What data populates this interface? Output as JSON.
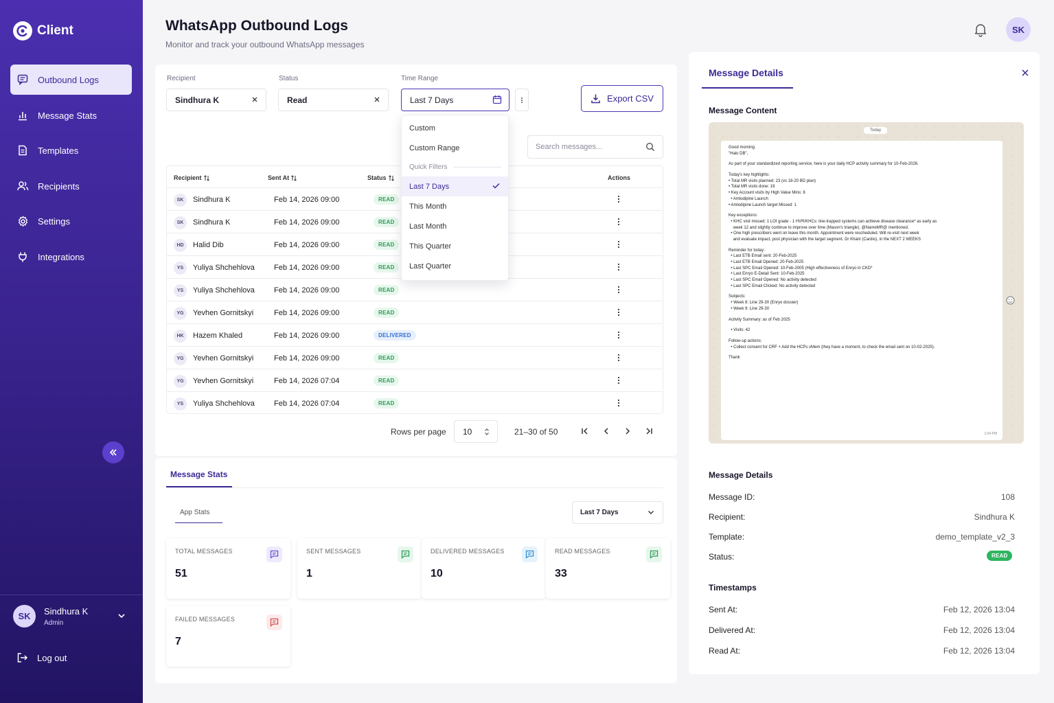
{
  "app": {
    "name": "Client"
  },
  "nav": {
    "items": [
      {
        "label": "Outbound Logs",
        "icon": "message-square-icon",
        "active": true
      },
      {
        "label": "Message Stats",
        "icon": "bar-chart-icon"
      },
      {
        "label": "Templates",
        "icon": "file-text-icon"
      },
      {
        "label": "Recipients",
        "icon": "users-icon"
      },
      {
        "label": "Settings",
        "icon": "gear-icon"
      },
      {
        "label": "Integrations",
        "icon": "plug-icon"
      }
    ]
  },
  "user": {
    "initials": "SK",
    "name": "Sindhura K",
    "role": "Admin",
    "logout": "Log out"
  },
  "header": {
    "title": "WhatsApp Outbound Logs",
    "subtitle": "Monitor and track your outbound WhatsApp messages",
    "avatar_initials": "SK"
  },
  "filters": {
    "recipient": {
      "label": "Recipient",
      "value": "Sindhura K"
    },
    "status": {
      "label": "Status",
      "value": "Read"
    },
    "time_range": {
      "label": "Time Range",
      "value": "Last 7 Days"
    },
    "export_label": "Export CSV",
    "search_placeholder": "Search messages..."
  },
  "time_dropdown": {
    "items": [
      "Custom",
      "Custom Range"
    ],
    "quick_header": "Quick Filters",
    "quick": [
      "Last 7 Days",
      "This Month",
      "Last Month",
      "This Quarter",
      "Last Quarter"
    ],
    "selected": "Last 7 Days"
  },
  "table": {
    "headers": {
      "recipient": "Recipient",
      "sent_at": "Sent At",
      "status": "Status",
      "actions": "Actions"
    },
    "rows": [
      {
        "initials": "SK",
        "name": "Sindhura K",
        "sent_at": "Feb 14, 2026 09:00",
        "status": "READ"
      },
      {
        "initials": "SK",
        "name": "Sindhura K",
        "sent_at": "Feb 14, 2026 09:00",
        "status": "READ"
      },
      {
        "initials": "HD",
        "name": "Halid Dib",
        "sent_at": "Feb 14, 2026 09:00",
        "status": "READ"
      },
      {
        "initials": "YS",
        "name": "Yuliya Shchehlova",
        "sent_at": "Feb 14, 2026 09:00",
        "status": "READ"
      },
      {
        "initials": "YS",
        "name": "Yuliya Shchehlova",
        "sent_at": "Feb 14, 2026 09:00",
        "status": "READ"
      },
      {
        "initials": "YG",
        "name": "Yevhen Gornitskyi",
        "sent_at": "Feb 14, 2026 09:00",
        "status": "READ"
      },
      {
        "initials": "HK",
        "name": "Hazem Khaled",
        "sent_at": "Feb 14, 2026 09:00",
        "status": "DELIVERED"
      },
      {
        "initials": "YG",
        "name": "Yevhen Gornitskyi",
        "sent_at": "Feb 14, 2026 09:00",
        "status": "READ"
      },
      {
        "initials": "YG",
        "name": "Yevhen Gornitskyi",
        "sent_at": "Feb 14, 2026 07:04",
        "status": "READ"
      },
      {
        "initials": "YS",
        "name": "Yuliya Shchehlova",
        "sent_at": "Feb 14, 2026 07:04",
        "status": "READ"
      }
    ]
  },
  "pagination": {
    "rows_per_page_label": "Rows per page",
    "rows_per_page": "10",
    "range": "21–30 of 50"
  },
  "stats": {
    "tab": "Message Stats",
    "subtab": "App Stats",
    "range": "Last 7 Days",
    "cards": [
      {
        "label": "TOTAL MESSAGES",
        "value": "51",
        "color": "#6a4fd8",
        "bg": "#eeeafc"
      },
      {
        "label": "SENT MESSAGES",
        "value": "1",
        "color": "#2c9a57",
        "bg": "#e6f7ec"
      },
      {
        "label": "DELIVERED MESSAGES",
        "value": "10",
        "color": "#2f8fd2",
        "bg": "#e6f2fb"
      },
      {
        "label": "READ MESSAGES",
        "value": "33",
        "color": "#2c9a57",
        "bg": "#e6f7ec"
      },
      {
        "label": "FAILED MESSAGES",
        "value": "7",
        "color": "#d94848",
        "bg": "#fdeaea"
      }
    ]
  },
  "detail": {
    "title": "Message Details",
    "content_heading": "Message Content",
    "today": "Today",
    "message_lines": [
      "Good morning",
      "\"Halo DB\",",
      "",
      "As part of your standardized reporting service, here is your daily HCP activity summary for 10-Feb-2026.",
      "",
      "Today's key highlights:",
      "• Total MR visits planned: 23 (vs 18-20 BD plan)",
      "• Total MR visits done: 19",
      "• Key Account visits by High Value Mins: 8",
      "  • Amlodipine Launch",
      "• Amlodipine Launch target Missed: 1",
      "",
      "Key exceptions:",
      "  • KHC visit missed: 1 LOI grade - 1 HVR/KHCs: line-trapped systems can achieve disease clearance* as early as",
      "    week 12 and slightly continue to improve over time (Mason's triangle). @NameMR@ mentioned.",
      "  • One high prescribers went on leave this month. Appointment were rescheduled. Will re-visit next week",
      "    and evaluate impact, post physician with the target segment. Dr Khatri (Cardio), in the NEXT 2 WEEKS",
      "",
      "Reminder for today:",
      "  • Last ETB Email sent: 20-Feb-2025",
      "  • Last ETB Email Opened: 20-Feb-2025",
      "  • Last SPC Email Opened: 10-Feb-2005 (High effectiveness of Enryo in CKD*",
      "  • Last Enryo E-Detail Sent: 10-Feb-2025",
      "  • Last SPC Email Opened: No activity detected",
      "  • Last SPC Email Clicked: No activity detected",
      "",
      "Subjects:",
      "  • Week 8: Line 29-30 (Enryo dossier)",
      "  • Week 9: Line 29-30",
      "",
      "Activity Summary: as of Feb 2025",
      "",
      "  • Visits: 42",
      "",
      "Follow-up actions:",
      "  • Collect consent for CRF + Add the HCPs vMem (they have a moment, to check the email sent on 10-02-2025).",
      "",
      "Thank"
    ],
    "message_time": "1:04 PM",
    "info_heading": "Message Details",
    "info": [
      {
        "key": "Message ID:",
        "value": "108"
      },
      {
        "key": "Recipient:",
        "value": "Sindhura K"
      },
      {
        "key": "Template:",
        "value": "demo_template_v2_3"
      },
      {
        "key": "Status:",
        "value": "READ"
      }
    ],
    "timestamps_heading": "Timestamps",
    "timestamps": [
      {
        "key": "Sent At:",
        "value": "Feb 12, 2026 13:04"
      },
      {
        "key": "Delivered At:",
        "value": "Feb 12, 2026 13:04"
      },
      {
        "key": "Read At:",
        "value": "Feb 12, 2026 13:04"
      }
    ]
  },
  "colors": {
    "brand": "#4b2fb0",
    "accent": "#3b2a96",
    "read": "#2c9a57",
    "delivered": "#2f6fd2"
  }
}
